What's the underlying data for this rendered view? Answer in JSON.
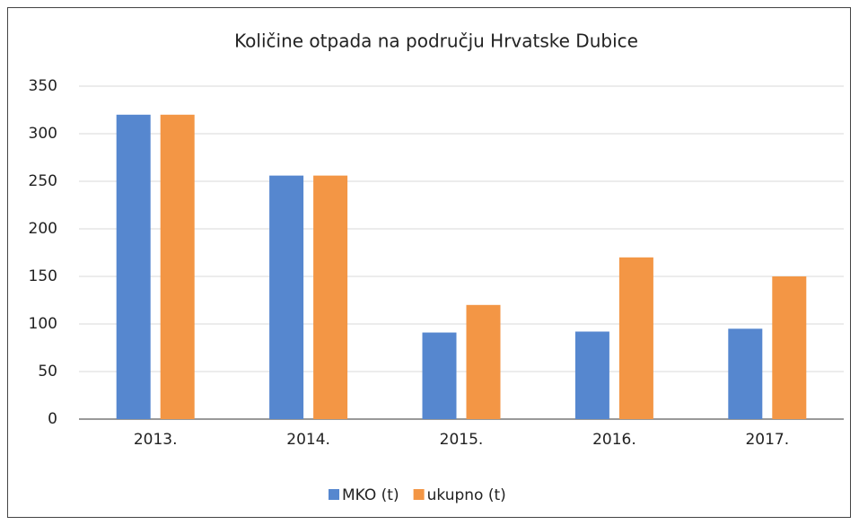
{
  "chart_data": {
    "type": "bar",
    "title": "Količine otpada na području Hrvatske Dubice",
    "categories": [
      "2013.",
      "2014.",
      "2015.",
      "2016.",
      "2017."
    ],
    "series": [
      {
        "name": "MKO (t)",
        "color": "#5687cf",
        "values": [
          320,
          256,
          91,
          92,
          95
        ]
      },
      {
        "name": "ukupno (t)",
        "color": "#f39645",
        "values": [
          320,
          256,
          120,
          170,
          150
        ]
      }
    ],
    "ylim": [
      0,
      350
    ],
    "yticks": [
      0,
      50,
      100,
      150,
      200,
      250,
      300,
      350
    ],
    "grid": true,
    "legend": "bottom"
  }
}
